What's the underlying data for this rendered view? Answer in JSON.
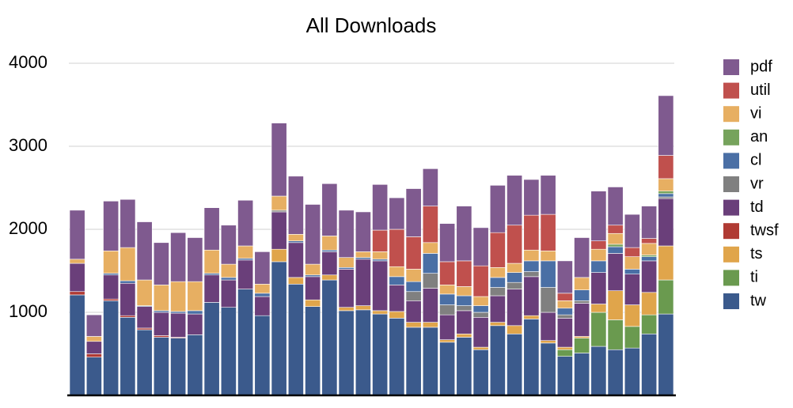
{
  "chart_data": {
    "type": "stacked_bar",
    "title": "All Downloads",
    "categories": [
      null,
      null,
      null,
      null,
      null,
      null,
      null,
      null,
      null,
      null,
      null,
      null,
      null,
      null,
      null,
      null,
      null,
      null,
      null,
      null,
      null,
      null,
      null,
      null,
      null,
      null,
      null,
      null,
      null,
      null,
      null,
      null,
      null,
      null,
      null,
      null
    ],
    "ylim": [
      0,
      4000
    ],
    "yticks": [
      1000,
      2000,
      3000,
      4000
    ],
    "grid": true,
    "legend": "right",
    "series": [
      {
        "name": "tw",
        "color": "#3b5a8c",
        "values": [
          1210,
          460,
          1140,
          940,
          790,
          700,
          690,
          730,
          1120,
          1060,
          1280,
          960,
          1610,
          1340,
          1070,
          1390,
          1020,
          1030,
          980,
          930,
          820,
          820,
          640,
          700,
          550,
          840,
          740,
          920,
          630,
          470,
          510,
          590,
          550,
          570,
          740,
          980
        ]
      },
      {
        "name": "ti",
        "color": "#6a9a4f",
        "values": [
          0,
          0,
          0,
          0,
          0,
          0,
          0,
          0,
          0,
          0,
          0,
          0,
          0,
          0,
          0,
          0,
          0,
          0,
          0,
          0,
          0,
          0,
          0,
          0,
          0,
          0,
          0,
          0,
          0,
          80,
          180,
          410,
          360,
          260,
          230,
          410
        ]
      },
      {
        "name": "ts",
        "color": "#e0a54b",
        "values": [
          0,
          0,
          0,
          0,
          0,
          0,
          0,
          0,
          0,
          0,
          0,
          0,
          150,
          80,
          80,
          60,
          40,
          50,
          40,
          80,
          60,
          60,
          30,
          40,
          30,
          40,
          100,
          40,
          30,
          30,
          20,
          100,
          350,
          260,
          270,
          410
        ]
      },
      {
        "name": "twsf",
        "color": "#b03a33",
        "values": [
          40,
          40,
          20,
          20,
          20,
          20,
          10,
          0,
          0,
          0,
          0,
          0,
          0,
          0,
          0,
          0,
          0,
          0,
          0,
          0,
          0,
          0,
          0,
          0,
          0,
          0,
          0,
          0,
          0,
          0,
          0,
          0,
          0,
          0,
          0,
          0
        ]
      },
      {
        "name": "td",
        "color": "#6a3f7a",
        "values": [
          340,
          150,
          290,
          390,
          260,
          280,
          290,
          250,
          330,
          330,
          350,
          230,
          450,
          420,
          280,
          280,
          460,
          560,
          600,
          320,
          260,
          410,
          300,
          280,
          360,
          320,
          440,
          470,
          340,
          350,
          400,
          380,
          450,
          370,
          380,
          570
        ]
      },
      {
        "name": "vr",
        "color": "#808080",
        "values": [
          0,
          0,
          0,
          0,
          0,
          0,
          0,
          0,
          0,
          0,
          0,
          0,
          20,
          0,
          0,
          0,
          0,
          0,
          0,
          0,
          110,
          180,
          120,
          60,
          60,
          100,
          80,
          60,
          300,
          40,
          30,
          0,
          0,
          0,
          0,
          20
        ]
      },
      {
        "name": "cl",
        "color": "#4a6fa5",
        "values": [
          0,
          0,
          20,
          30,
          10,
          20,
          20,
          40,
          20,
          30,
          20,
          40,
          0,
          20,
          20,
          20,
          20,
          20,
          20,
          100,
          120,
          240,
          130,
          120,
          80,
          120,
          120,
          130,
          320,
          80,
          130,
          140,
          80,
          60,
          50,
          40
        ]
      },
      {
        "name": "an",
        "color": "#76a35c",
        "values": [
          0,
          0,
          0,
          0,
          0,
          0,
          0,
          0,
          0,
          0,
          0,
          0,
          0,
          0,
          0,
          0,
          0,
          0,
          0,
          0,
          0,
          0,
          0,
          0,
          0,
          0,
          0,
          0,
          0,
          0,
          0,
          0,
          30,
          0,
          20,
          30
        ]
      },
      {
        "name": "vi",
        "color": "#e7af62",
        "values": [
          50,
          60,
          270,
          400,
          310,
          310,
          360,
          350,
          280,
          160,
          150,
          110,
          170,
          80,
          130,
          170,
          120,
          70,
          90,
          120,
          150,
          130,
          110,
          110,
          110,
          120,
          110,
          130,
          120,
          90,
          150,
          140,
          130,
          150,
          140,
          150
        ]
      },
      {
        "name": "util",
        "color": "#c0504d",
        "values": [
          0,
          0,
          0,
          0,
          0,
          0,
          0,
          0,
          0,
          0,
          0,
          0,
          0,
          0,
          0,
          0,
          0,
          0,
          260,
          450,
          390,
          440,
          280,
          310,
          370,
          420,
          460,
          420,
          440,
          90,
          0,
          100,
          100,
          110,
          60,
          280
        ]
      },
      {
        "name": "pdf",
        "color": "#7f5a8f",
        "values": [
          590,
          260,
          600,
          580,
          700,
          510,
          590,
          530,
          510,
          470,
          550,
          390,
          880,
          700,
          720,
          630,
          570,
          480,
          550,
          380,
          580,
          450,
          460,
          660,
          460,
          570,
          600,
          430,
          470,
          390,
          480,
          600,
          460,
          400,
          390,
          720
        ]
      }
    ]
  }
}
